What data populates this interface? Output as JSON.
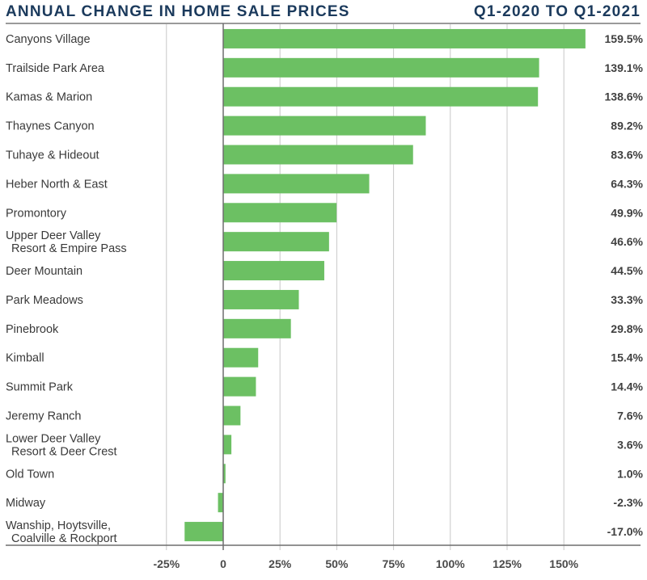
{
  "chart_data": {
    "type": "bar",
    "orientation": "horizontal",
    "title": "ANNUAL CHANGE IN HOME SALE PRICES",
    "subtitle": "Q1-2020 TO Q1-2021",
    "xlabel": "",
    "ylabel": "",
    "xlim": [
      -25,
      160
    ],
    "grid": true,
    "tick_values": [
      -25,
      0,
      25,
      50,
      75,
      100,
      125,
      150
    ],
    "tick_labels": [
      "-25%",
      "0",
      "25%",
      "50%",
      "75%",
      "100%",
      "125%",
      "150%"
    ],
    "categories": [
      [
        "Canyons Village"
      ],
      [
        "Trailside Park Area"
      ],
      [
        "Kamas & Marion"
      ],
      [
        "Thaynes Canyon"
      ],
      [
        "Tuhaye & Hideout"
      ],
      [
        "Heber North & East"
      ],
      [
        "Promontory"
      ],
      [
        "Upper Deer Valley",
        "Resort & Empire Pass"
      ],
      [
        "Deer Mountain"
      ],
      [
        "Park Meadows"
      ],
      [
        "Pinebrook"
      ],
      [
        "Kimball"
      ],
      [
        "Summit Park"
      ],
      [
        "Jeremy Ranch"
      ],
      [
        "Lower Deer Valley",
        "Resort & Deer Crest"
      ],
      [
        "Old Town"
      ],
      [
        "Midway"
      ],
      [
        "Wanship, Hoytsville,",
        "Coalville & Rockport"
      ]
    ],
    "values": [
      159.5,
      139.1,
      138.6,
      89.2,
      83.6,
      64.3,
      49.9,
      46.6,
      44.5,
      33.3,
      29.8,
      15.4,
      14.4,
      7.6,
      3.6,
      1.0,
      -2.3,
      -17.0
    ],
    "value_labels": [
      "159.5%",
      "139.1%",
      "138.6%",
      "89.2%",
      "83.6%",
      "64.3%",
      "49.9%",
      "46.6%",
      "44.5%",
      "33.3%",
      "29.8%",
      "15.4%",
      "14.4%",
      "7.6%",
      "3.6%",
      "1.0%",
      "-2.3%",
      "-17.0%"
    ],
    "colors": {
      "bar": "#6cc063",
      "title": "#1b3a5c",
      "grid": "#c8c8c8",
      "axis": "#6e6e6e"
    }
  }
}
